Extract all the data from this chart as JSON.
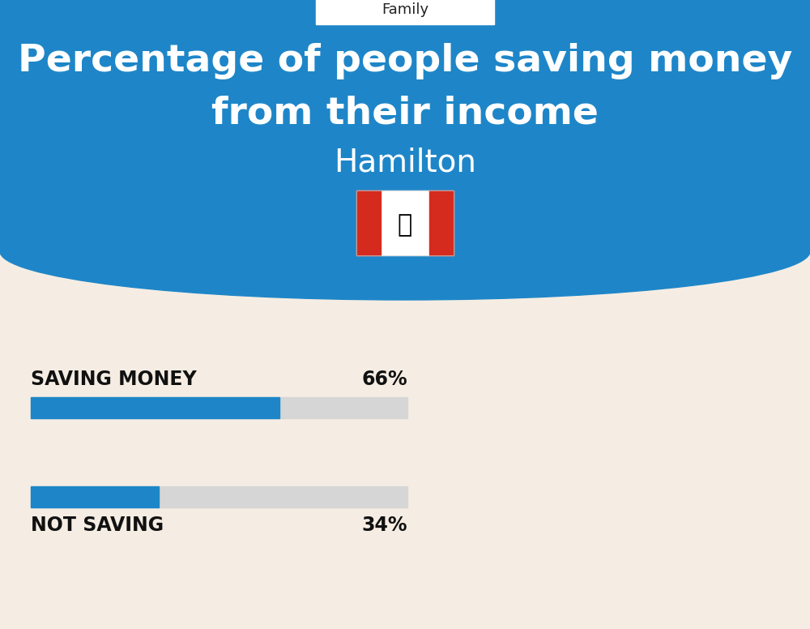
{
  "title_line1": "Percentage of people saving money",
  "title_line2": "from their income",
  "subtitle": "Hamilton",
  "category_label": "Family",
  "bg_color_top": "#1E86C8",
  "bg_color_bottom": "#F5EDE3",
  "bar_active_color": "#1E86C8",
  "bar_inactive_color": "#D6D6D6",
  "bar1_label": "SAVING MONEY",
  "bar1_value": 66,
  "bar1_pct": "66%",
  "bar2_label": "NOT SAVING",
  "bar2_value": 34,
  "bar2_pct": "34%",
  "text_color_title": "#FFFFFF",
  "text_color_bars": "#111111",
  "label_fontsize": 17,
  "pct_fontsize": 17,
  "title_fontsize": 34,
  "subtitle_fontsize": 28,
  "family_fontsize": 13,
  "fig_width": 10.0,
  "fig_height": 7.76,
  "dpi": 100
}
